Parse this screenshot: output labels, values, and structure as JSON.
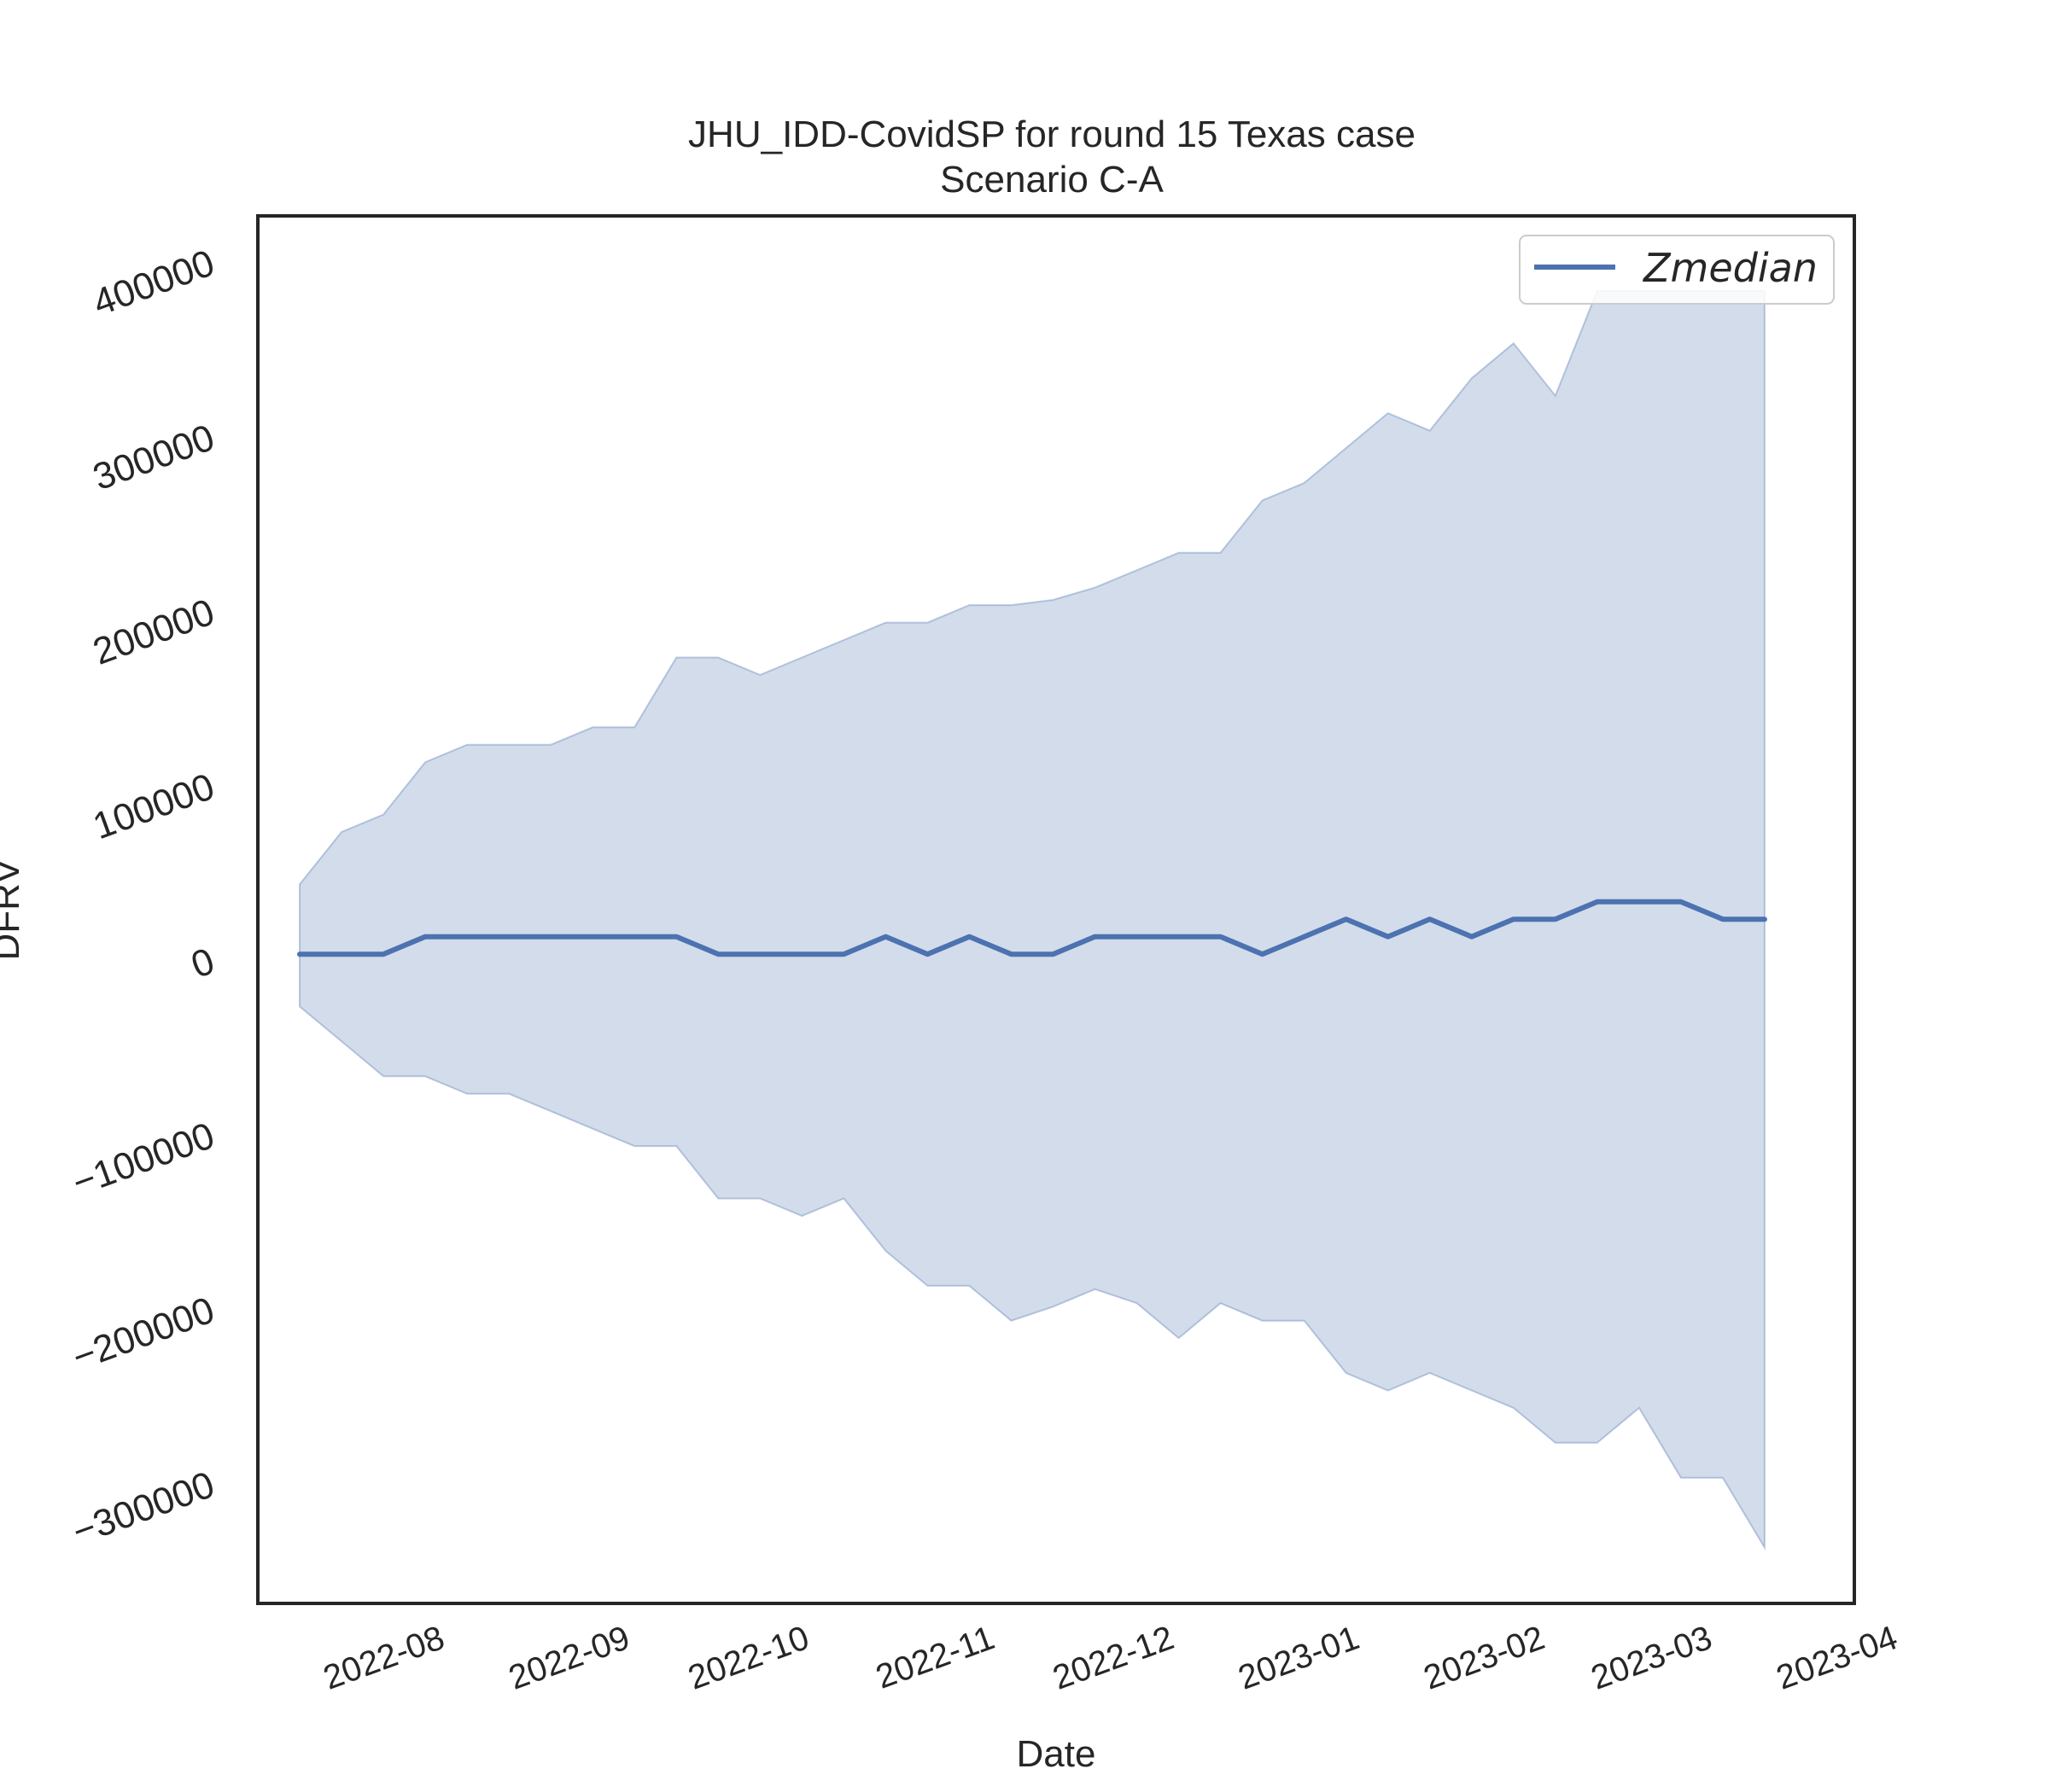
{
  "chart_data": {
    "type": "line",
    "title": "JHU_IDD-CovidSP for round 15 Texas case",
    "subtitle": "Scenario C-A",
    "xlabel": "Date",
    "ylabel": "DFRV",
    "ylim": [
      -370000,
      425000
    ],
    "xlim": [
      "2022-07-09",
      "2023-04-02"
    ],
    "x_ticks": [
      "2022-08",
      "2022-09",
      "2022-10",
      "2022-11",
      "2022-12",
      "2023-01",
      "2023-02",
      "2023-03",
      "2023-04"
    ],
    "y_ticks": [
      400000,
      300000,
      200000,
      100000,
      0,
      -100000,
      -200000,
      -300000
    ],
    "y_tick_labels": [
      "400000",
      "300000",
      "200000",
      "100000",
      "0",
      "−100000",
      "−200000",
      "−300000"
    ],
    "legend": {
      "position": "top-right",
      "entries": [
        "Zmedian"
      ]
    },
    "grid": false,
    "colors": {
      "line": "#4c72b0",
      "band": "#4c72b0"
    },
    "x": [
      "2022-07-16",
      "2022-07-23",
      "2022-07-30",
      "2022-08-06",
      "2022-08-13",
      "2022-08-20",
      "2022-08-27",
      "2022-09-03",
      "2022-09-10",
      "2022-09-17",
      "2022-09-24",
      "2022-10-01",
      "2022-10-08",
      "2022-10-15",
      "2022-10-22",
      "2022-10-29",
      "2022-11-05",
      "2022-11-12",
      "2022-11-19",
      "2022-11-26",
      "2022-12-03",
      "2022-12-10",
      "2022-12-17",
      "2022-12-24",
      "2022-12-31",
      "2023-01-07",
      "2023-01-14",
      "2023-01-21",
      "2023-01-28",
      "2023-02-04",
      "2023-02-11",
      "2023-02-18",
      "2023-02-25",
      "2023-03-04",
      "2023-03-11",
      "2023-03-18"
    ],
    "series": [
      {
        "name": "Zmedian",
        "values": [
          2000,
          2000,
          2000,
          12000,
          12000,
          12000,
          12000,
          12000,
          12000,
          12000,
          2000,
          2000,
          2000,
          2000,
          12000,
          2000,
          12000,
          2000,
          2000,
          12000,
          12000,
          12000,
          12000,
          2000,
          12000,
          22000,
          12000,
          22000,
          12000,
          22000,
          22000,
          32000,
          32000,
          32000,
          22000,
          22000
        ]
      }
    ],
    "band": {
      "upper": [
        42000,
        72000,
        82000,
        112000,
        122000,
        122000,
        122000,
        132000,
        132000,
        172000,
        172000,
        162000,
        172000,
        182000,
        192000,
        192000,
        202000,
        202000,
        205000,
        212000,
        222000,
        232000,
        232000,
        262000,
        272000,
        292000,
        312000,
        302000,
        332000,
        352000,
        322000,
        382000,
        382000,
        382000,
        382000,
        382000
      ],
      "lower": [
        -28000,
        -48000,
        -68000,
        -68000,
        -78000,
        -78000,
        -88000,
        -98000,
        -108000,
        -108000,
        -138000,
        -138000,
        -148000,
        -138000,
        -168000,
        -188000,
        -188000,
        -208000,
        -200000,
        -190000,
        -198000,
        -218000,
        -198000,
        -208000,
        -208000,
        -238000,
        -248000,
        -238000,
        -248000,
        -258000,
        -278000,
        -278000,
        -258000,
        -298000,
        -298000,
        -338000
      ]
    }
  }
}
